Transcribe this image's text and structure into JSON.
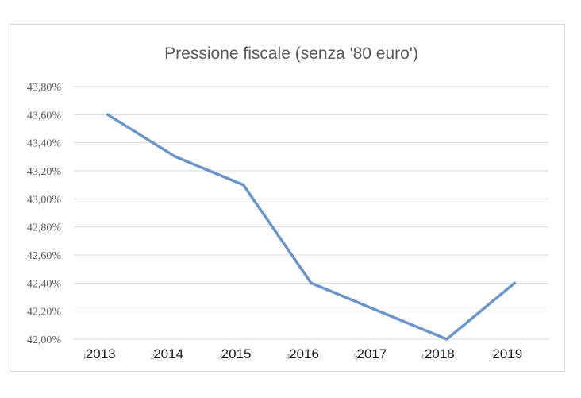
{
  "chart_data": {
    "type": "line",
    "title": "Pressione fiscale (senza '80 euro')",
    "xlabel": "",
    "ylabel": "",
    "categories": [
      "2013",
      "2014",
      "2015",
      "2016",
      "2017",
      "2018",
      "2019"
    ],
    "category_index_labels": [
      "1",
      "2",
      "3",
      "4",
      "5",
      "6",
      "7"
    ],
    "y_tick_labels": [
      "42,00%",
      "42,20%",
      "42,40%",
      "42,60%",
      "42,80%",
      "43,00%",
      "43,20%",
      "43,40%",
      "43,60%",
      "43,80%"
    ],
    "ylim": [
      42.0,
      43.8
    ],
    "y_step": 0.2,
    "grid": true,
    "legend": "none",
    "series": [
      {
        "values": [
          43.6,
          43.3,
          43.1,
          42.4,
          42.2,
          42.0,
          42.4
        ],
        "color": "#6a95c9"
      }
    ]
  }
}
